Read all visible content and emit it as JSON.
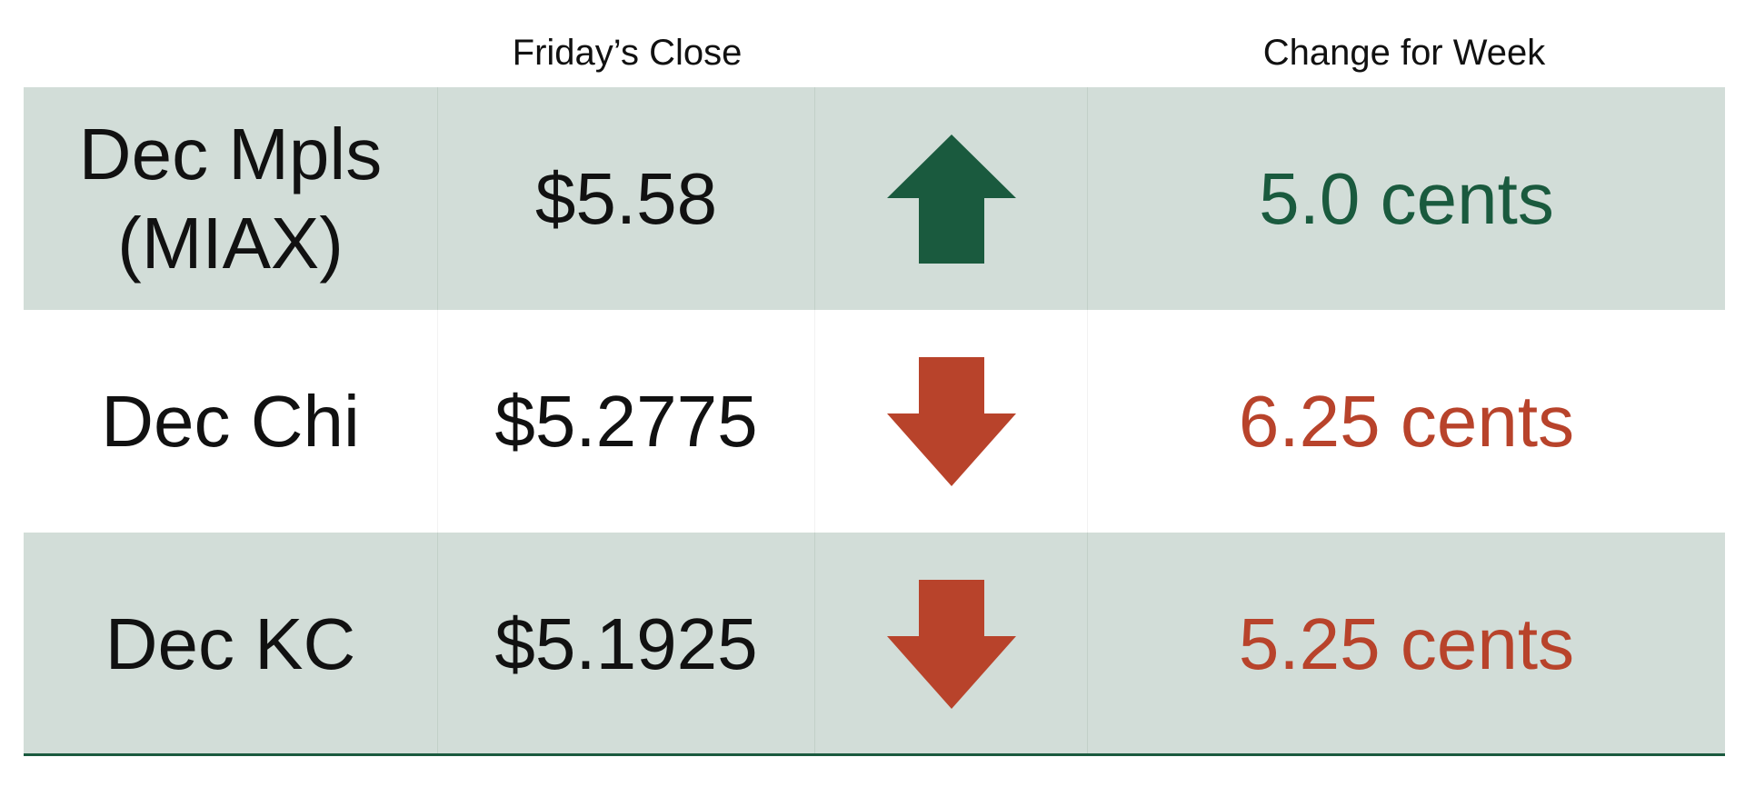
{
  "header": {
    "close_label": "Friday’s Close",
    "change_label": "Change for Week"
  },
  "colors": {
    "up": "#1a5a3e",
    "down": "#b8432b",
    "row_shade": "#d2ddd8"
  },
  "rows": [
    {
      "name_line1": "Dec Mpls",
      "name_line2": "(MIAX)",
      "close": "$5.58",
      "direction": "up",
      "arrow_icon": "arrow-up-icon",
      "change": "5.0 cents"
    },
    {
      "name_line1": "Dec Chi",
      "name_line2": "",
      "close": "$5.2775",
      "direction": "down",
      "arrow_icon": "arrow-down-icon",
      "change": "6.25 cents"
    },
    {
      "name_line1": "Dec KC",
      "name_line2": "",
      "close": "$5.1925",
      "direction": "down",
      "arrow_icon": "arrow-down-icon",
      "change": "5.25 cents"
    }
  ]
}
